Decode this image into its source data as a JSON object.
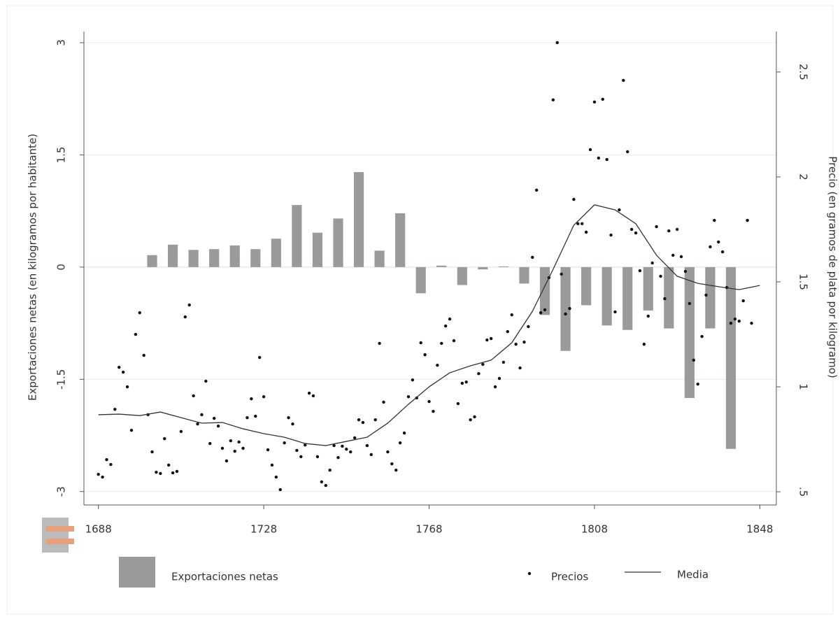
{
  "chart_data": {
    "type": "combo",
    "y_label": "Exportaciones netas (en kilogramos por habitante)",
    "y2_label": "Precio (en gramos de plata por kilogramo)",
    "xlim": [
      1684.5,
      1852
    ],
    "xticks": [
      1688,
      1728,
      1768,
      1808,
      1848
    ],
    "ylim": [
      -3.18,
      3.15
    ],
    "yticks": [
      3,
      1.5,
      0,
      -1.5,
      -3
    ],
    "y2lim": [
      0.437,
      2.693
    ],
    "y2ticks": [
      2.5,
      2,
      1.5,
      1,
      {
        "value": 0.5,
        "label": ".5"
      }
    ],
    "grid": true,
    "series": [
      {
        "name": "Exportaciones netas",
        "type": "bar",
        "color": "#9a9a9a",
        "x": [
          1701,
          1706,
          1711,
          1716,
          1721,
          1726,
          1731,
          1736,
          1741,
          1746,
          1751,
          1756,
          1761,
          1766,
          1771,
          1776,
          1781,
          1786,
          1791,
          1796,
          1801,
          1806,
          1811,
          1816,
          1821,
          1826,
          1831,
          1836,
          1841
        ],
        "values": [
          0.16,
          0.3,
          0.23,
          0.24,
          0.29,
          0.24,
          0.38,
          0.83,
          0.46,
          0.65,
          1.27,
          0.22,
          0.72,
          -0.35,
          0.02,
          -0.24,
          -0.03,
          0.01,
          -0.22,
          -0.64,
          -1.12,
          -0.51,
          -0.78,
          -0.84,
          -0.58,
          -0.82,
          -1.75,
          -0.82,
          -2.43
        ]
      },
      {
        "name": "Precios",
        "type": "scatter",
        "axis": "y2",
        "color": "#111111",
        "x": [
          1688,
          1689,
          1690,
          1691,
          1692,
          1693,
          1694,
          1695,
          1696,
          1697,
          1698,
          1699,
          1700,
          1701,
          1702,
          1703,
          1704,
          1705,
          1706,
          1707,
          1708,
          1709,
          1710,
          1711,
          1712,
          1713,
          1714,
          1715,
          1716,
          1717,
          1718,
          1719,
          1720,
          1721,
          1722,
          1723,
          1724,
          1725,
          1726,
          1727,
          1728,
          1729,
          1730,
          1731,
          1732,
          1733,
          1734,
          1735,
          1736,
          1737,
          1738,
          1739,
          1740,
          1741,
          1742,
          1743,
          1744,
          1745,
          1746,
          1747,
          1748,
          1749,
          1750,
          1751,
          1752,
          1753,
          1754,
          1755,
          1756,
          1757,
          1758,
          1759,
          1760,
          1761,
          1762,
          1763,
          1764,
          1765,
          1766,
          1767,
          1768,
          1769,
          1770,
          1771,
          1772,
          1773,
          1774,
          1775,
          1776,
          1777,
          1778,
          1779,
          1780,
          1781,
          1782,
          1783,
          1784,
          1785,
          1786,
          1787,
          1788,
          1789,
          1790,
          1791,
          1792,
          1793,
          1794,
          1795,
          1796,
          1797,
          1798,
          1799,
          1800,
          1801,
          1802,
          1803,
          1804,
          1805,
          1806,
          1807,
          1808,
          1809,
          1810,
          1811,
          1812,
          1813,
          1814,
          1815,
          1816,
          1817,
          1818,
          1819,
          1820,
          1821,
          1822,
          1823,
          1824,
          1825,
          1826,
          1827,
          1828,
          1829,
          1830,
          1831,
          1832,
          1833,
          1834,
          1835,
          1836,
          1837,
          1838,
          1839,
          1840,
          1841,
          1842,
          1843,
          1844,
          1845,
          1846
        ],
        "values": [
          0.583,
          0.57,
          0.653,
          0.63,
          0.893,
          1.093,
          1.07,
          1.0,
          0.793,
          1.25,
          1.353,
          1.15,
          0.867,
          0.69,
          0.593,
          0.587,
          0.753,
          0.627,
          0.59,
          0.597,
          0.787,
          1.333,
          1.39,
          0.957,
          0.823,
          0.867,
          1.027,
          0.73,
          0.85,
          0.813,
          0.707,
          0.647,
          0.743,
          0.693,
          0.737,
          0.707,
          0.853,
          0.943,
          0.86,
          1.14,
          0.953,
          0.7,
          0.627,
          0.57,
          0.51,
          0.733,
          0.853,
          0.823,
          0.697,
          0.667,
          0.723,
          0.97,
          0.957,
          0.667,
          0.547,
          0.53,
          0.603,
          0.72,
          0.663,
          0.717,
          0.703,
          0.69,
          0.757,
          0.843,
          0.83,
          0.72,
          0.677,
          0.843,
          1.207,
          0.927,
          0.69,
          0.633,
          0.603,
          0.733,
          0.78,
          0.953,
          1.033,
          0.947,
          1.21,
          1.153,
          0.93,
          0.883,
          1.103,
          1.207,
          1.29,
          1.323,
          1.22,
          0.92,
          1.017,
          1.023,
          0.843,
          0.857,
          1.063,
          1.107,
          1.223,
          1.23,
          1.0,
          1.04,
          1.117,
          1.263,
          1.343,
          1.203,
          1.09,
          1.213,
          1.287,
          1.617,
          1.937,
          1.353,
          1.367,
          1.52,
          2.367,
          2.64,
          1.537,
          1.347,
          1.373,
          1.893,
          1.777,
          1.777,
          1.737,
          2.13,
          2.357,
          2.09,
          2.37,
          2.083,
          1.723,
          1.357,
          1.843,
          2.46,
          2.12,
          1.75,
          1.733,
          1.553,
          1.203,
          1.337,
          1.59,
          1.763,
          1.527,
          1.42,
          1.743,
          1.627,
          1.75,
          1.62,
          1.55,
          1.397,
          1.127,
          1.013,
          1.24,
          1.437,
          1.667,
          1.793,
          1.69,
          1.643,
          1.473,
          1.303,
          1.323,
          1.313,
          1.41,
          1.793,
          1.303
        ]
      },
      {
        "name": "Media",
        "type": "line",
        "axis": "y2",
        "color": "#333333",
        "x": [
          1688,
          1693,
          1698,
          1703,
          1708,
          1713,
          1718,
          1723,
          1728,
          1733,
          1738,
          1743,
          1748,
          1753,
          1758,
          1763,
          1768,
          1773,
          1778,
          1783,
          1788,
          1793,
          1798,
          1803,
          1808,
          1813,
          1818,
          1823,
          1828,
          1833,
          1838,
          1843,
          1848
        ],
        "values": [
          0.867,
          0.87,
          0.863,
          0.88,
          0.853,
          0.827,
          0.83,
          0.8,
          0.777,
          0.76,
          0.73,
          0.72,
          0.74,
          0.76,
          0.827,
          0.917,
          1.0,
          1.067,
          1.1,
          1.127,
          1.21,
          1.36,
          1.56,
          1.77,
          1.867,
          1.843,
          1.777,
          1.627,
          1.527,
          1.493,
          1.477,
          1.463,
          1.483
        ]
      }
    ]
  }
}
